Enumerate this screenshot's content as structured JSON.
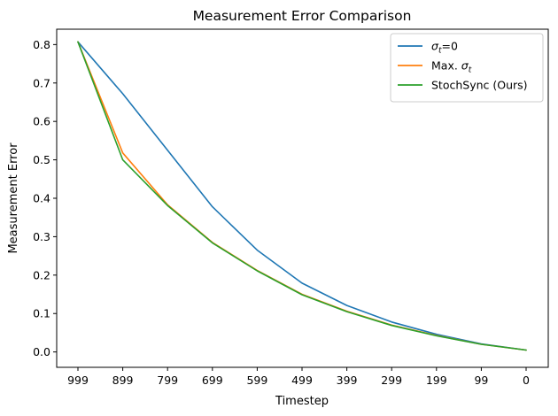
{
  "chart_data": {
    "type": "line",
    "title": "Measurement Error Comparison",
    "xlabel": "Timestep",
    "ylabel": "Measurement Error",
    "categories": [
      "999",
      "899",
      "799",
      "699",
      "599",
      "499",
      "399",
      "299",
      "199",
      "99",
      "0"
    ],
    "ylim": [
      -0.04,
      0.84
    ],
    "yticks": [
      "0.0",
      "0.1",
      "0.2",
      "0.3",
      "0.4",
      "0.5",
      "0.6",
      "0.7",
      "0.8"
    ],
    "grid": false,
    "legend_position": "top-right",
    "series": [
      {
        "name": "σt=0",
        "legend": {
          "symbol": "σ",
          "subscript": "t",
          "suffix": "=0"
        },
        "color": "#1f77b4",
        "values": [
          0.807,
          0.672,
          0.525,
          0.378,
          0.265,
          0.179,
          0.121,
          0.078,
          0.046,
          0.021,
          0.005
        ]
      },
      {
        "name": "Max. σt",
        "legend": {
          "prefix": "Max. ",
          "symbol": "σ",
          "subscript": "t"
        },
        "color": "#ff7f0e",
        "values": [
          0.807,
          0.518,
          0.383,
          0.285,
          0.212,
          0.15,
          0.106,
          0.07,
          0.043,
          0.02,
          0.005
        ]
      },
      {
        "name": "StochSync (Ours)",
        "legend": {
          "prefix": "StochSync (Ours)"
        },
        "color": "#2ca02c",
        "values": [
          0.807,
          0.5,
          0.381,
          0.284,
          0.211,
          0.149,
          0.105,
          0.069,
          0.042,
          0.02,
          0.005
        ]
      }
    ]
  }
}
